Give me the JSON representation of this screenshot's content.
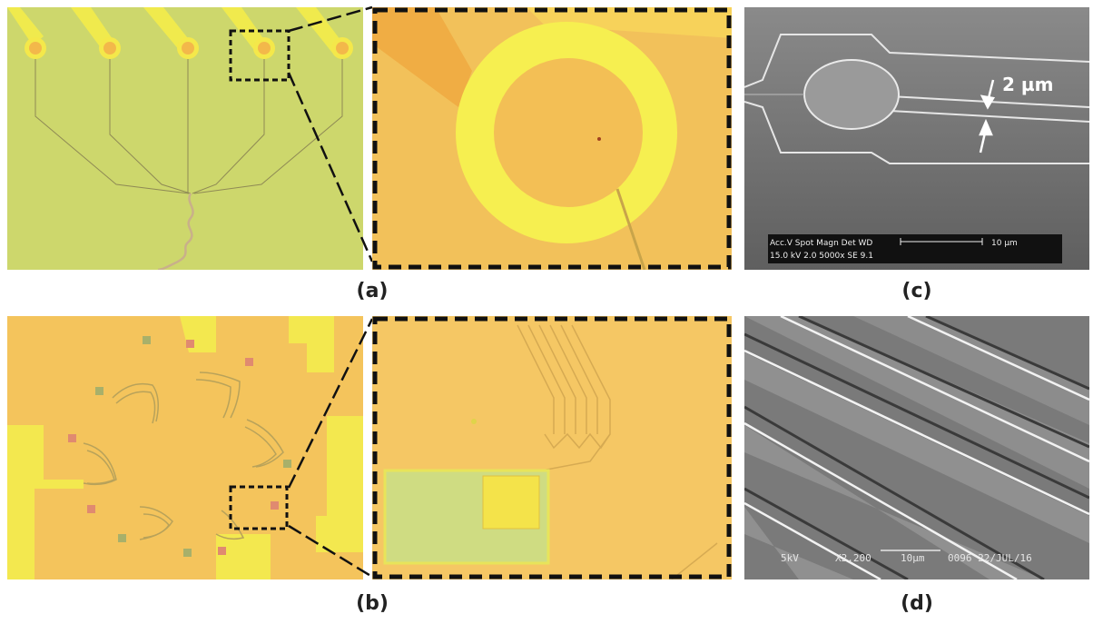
{
  "labels": {
    "a": "(a)",
    "b": "(b)",
    "c": "(c)",
    "d": "(d)"
  },
  "panel_c": {
    "dimension_label": "2 µm",
    "databar_row1": "Acc.V  Spot Magn    Det  WD",
    "databar_row2": "15.0 kV 2.0   5000x    SE   9.1",
    "scale_label": "10 µm"
  },
  "panel_d": {
    "databar_left": "5kV",
    "databar_mag": "X2,200",
    "databar_scale": "10µm",
    "databar_right": "0096 22/JUL/16"
  },
  "colors": {
    "film_green": "#cfd86e",
    "film_orange": "#f4c25a",
    "gold_yellow": "#f5ee4a",
    "pad_red": "#e88a70",
    "dash": "#111111",
    "sem_gray": "#7b7b7b"
  }
}
